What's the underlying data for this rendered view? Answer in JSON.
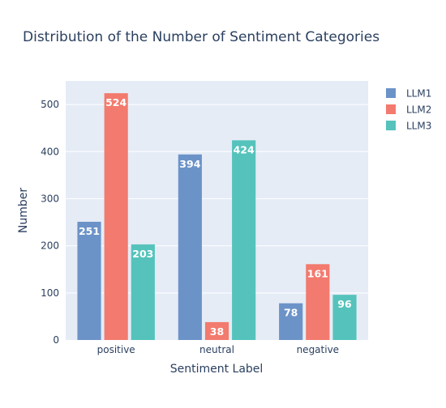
{
  "chart_data": {
    "type": "bar",
    "title": "Distribution of the Number of Sentiment Categories",
    "xlabel": "Sentiment Label",
    "ylabel": "Number",
    "categories": [
      "positive",
      "neutral",
      "negative"
    ],
    "ylim": [
      0,
      550
    ],
    "yticks": [
      0,
      100,
      200,
      300,
      400,
      500
    ],
    "grid": true,
    "legend_position": "top-right",
    "series": [
      {
        "name": "LLM1",
        "values": [
          251,
          394,
          78
        ],
        "color": "#6C93C8"
      },
      {
        "name": "LLM2",
        "values": [
          524,
          38,
          161
        ],
        "color": "#F37A6E"
      },
      {
        "name": "LLM3",
        "values": [
          203,
          424,
          96
        ],
        "color": "#55C3BC"
      }
    ],
    "background_color": "#E5ECF6"
  }
}
